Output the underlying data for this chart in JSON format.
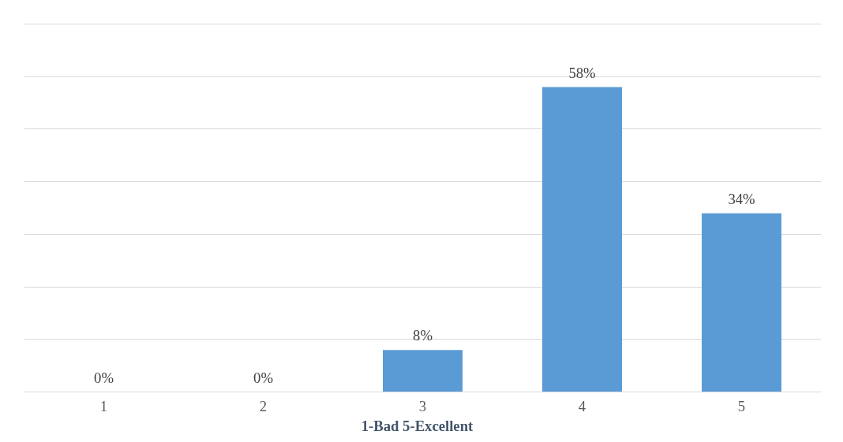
{
  "chart_data": {
    "type": "bar",
    "xlabel": "1-Bad    5-Excellent",
    "categories": [
      "1",
      "2",
      "3",
      "4",
      "5"
    ],
    "values": [
      0,
      0,
      8,
      58,
      34
    ],
    "value_labels": [
      "0%",
      "0%",
      "8%",
      "58%",
      "34%"
    ],
    "color": "#5b9bd5",
    "ylim": [
      0,
      70
    ],
    "yticks": [
      {
        "value": 0,
        "label": null
      },
      {
        "value": 10,
        "label": null
      },
      {
        "value": 20,
        "label": null
      },
      {
        "value": 30,
        "label": null
      },
      {
        "value": 40,
        "label": null
      },
      {
        "value": 50,
        "label": null
      },
      {
        "value": 60,
        "label": null
      },
      {
        "value": 70,
        "label": null
      }
    ],
    "tick_labels": "x",
    "grid": "y"
  }
}
